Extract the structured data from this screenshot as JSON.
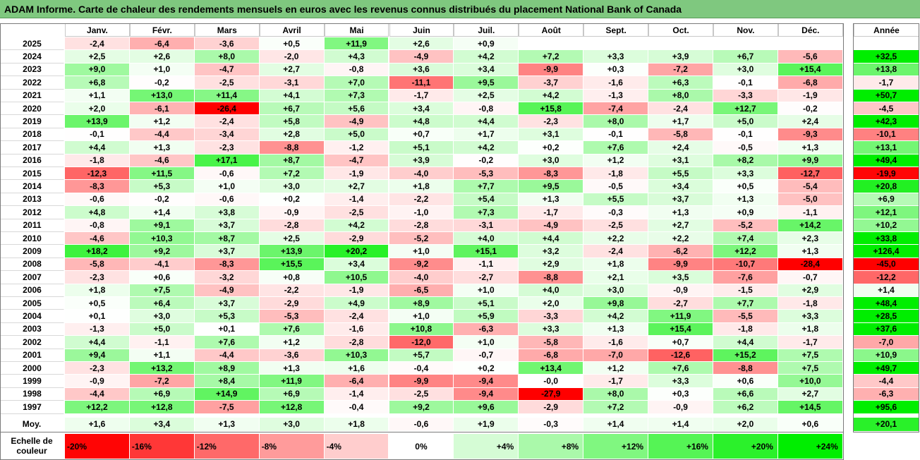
{
  "title": "ADAM Informe. Carte de chaleur des rendements mensuels en euros avec les revenus connus distribués du placement National Bank of Canada",
  "chart_data": {
    "type": "heatmap",
    "title": "ADAM Informe. Carte de chaleur des rendements mensuels en euros avec les revenus connus distribués du placement National Bank of Canada",
    "columns": [
      "Janv.",
      "Févr.",
      "Mars",
      "Avril",
      "Mai",
      "Juin",
      "Juil.",
      "Août",
      "Sept.",
      "Oct.",
      "Nov.",
      "Déc."
    ],
    "year_header": "Année",
    "rows": [
      {
        "year": "2025",
        "values": [
          "-2,4",
          "-6,4",
          "-3,6",
          "+0,5",
          "+11,9",
          "+2,6",
          "+0,9",
          "",
          "",
          "",
          "",
          ""
        ],
        "annual": ""
      },
      {
        "year": "2024",
        "values": [
          "+2,5",
          "+2,6",
          "+8,0",
          "-2,0",
          "+4,3",
          "-4,9",
          "+4,2",
          "+7,2",
          "+3,3",
          "+3,9",
          "+6,7",
          "-5,6"
        ],
        "annual": "+32,5"
      },
      {
        "year": "2023",
        "values": [
          "+9,0",
          "+1,0",
          "-4,7",
          "+2,7",
          "-0,8",
          "+3,6",
          "+3,4",
          "-9,9",
          "+0,3",
          "-7,2",
          "+3,0",
          "+15,4"
        ],
        "annual": "+13,8"
      },
      {
        "year": "2022",
        "values": [
          "+6,8",
          "-0,2",
          "-2,5",
          "-3,1",
          "+7,0",
          "-11,1",
          "+9,5",
          "-3,7",
          "-1,6",
          "+6,3",
          "-0,1",
          "-6,8"
        ],
        "annual": "-1,7"
      },
      {
        "year": "2021",
        "values": [
          "+1,1",
          "+13,0",
          "+11,4",
          "+4,1",
          "+7,3",
          "-1,7",
          "+2,5",
          "+4,2",
          "-1,3",
          "+8,0",
          "-3,3",
          "-1,9"
        ],
        "annual": "+50,7"
      },
      {
        "year": "2020",
        "values": [
          "+2,0",
          "-6,1",
          "-26,4",
          "+6,7",
          "+5,6",
          "+3,4",
          "-0,8",
          "+15,8",
          "-7,4",
          "-2,4",
          "+12,7",
          "-0,2"
        ],
        "annual": "-4,5"
      },
      {
        "year": "2019",
        "values": [
          "+13,9",
          "+1,2",
          "-2,4",
          "+5,8",
          "-4,9",
          "+4,8",
          "+4,4",
          "-2,3",
          "+8,0",
          "+1,7",
          "+5,0",
          "+2,4"
        ],
        "annual": "+42,3"
      },
      {
        "year": "2018",
        "values": [
          "-0,1",
          "-4,4",
          "-3,4",
          "+2,8",
          "+5,0",
          "+0,7",
          "+1,7",
          "+3,1",
          "-0,1",
          "-5,8",
          "-0,1",
          "-9,3"
        ],
        "annual": "-10,1"
      },
      {
        "year": "2017",
        "values": [
          "+4,4",
          "+1,3",
          "-2,3",
          "-8,8",
          "-1,2",
          "+5,1",
          "+4,2",
          "+0,2",
          "+7,6",
          "+2,4",
          "-0,5",
          "+1,3"
        ],
        "annual": "+13,1"
      },
      {
        "year": "2016",
        "values": [
          "-1,8",
          "-4,6",
          "+17,1",
          "+8,7",
          "-4,7",
          "+3,9",
          "-0,2",
          "+3,0",
          "+1,2",
          "+3,1",
          "+8,2",
          "+9,9"
        ],
        "annual": "+49,4"
      },
      {
        "year": "2015",
        "values": [
          "-12,3",
          "+11,5",
          "-0,6",
          "+7,2",
          "-1,9",
          "-4,0",
          "-5,3",
          "-8,3",
          "-1,8",
          "+5,5",
          "+3,3",
          "-12,7"
        ],
        "annual": "-19,9"
      },
      {
        "year": "2014",
        "values": [
          "-8,3",
          "+5,3",
          "+1,0",
          "+3,0",
          "+2,7",
          "+1,8",
          "+7,7",
          "+9,5",
          "-0,5",
          "+3,4",
          "+0,5",
          "-5,4"
        ],
        "annual": "+20,8"
      },
      {
        "year": "2013",
        "values": [
          "-0,6",
          "-0,2",
          "-0,6",
          "+0,2",
          "-1,4",
          "-2,2",
          "+5,4",
          "+1,3",
          "+5,5",
          "+3,7",
          "+1,3",
          "-5,0"
        ],
        "annual": "+6,9"
      },
      {
        "year": "2012",
        "values": [
          "+4,8",
          "+1,4",
          "+3,8",
          "-0,9",
          "-2,5",
          "-1,0",
          "+7,3",
          "-1,7",
          "-0,3",
          "+1,3",
          "+0,9",
          "-1,1"
        ],
        "annual": "+12,1"
      },
      {
        "year": "2011",
        "values": [
          "-0,8",
          "+9,1",
          "+3,7",
          "-2,8",
          "+4,2",
          "-2,8",
          "-3,1",
          "-4,9",
          "-2,5",
          "+2,7",
          "-5,2",
          "+14,2"
        ],
        "annual": "+10,2"
      },
      {
        "year": "2010",
        "values": [
          "-4,6",
          "+10,3",
          "+8,7",
          "+2,5",
          "-2,9",
          "-5,2",
          "+4,0",
          "+4,4",
          "+2,2",
          "+2,2",
          "+7,4",
          "+2,3"
        ],
        "annual": "+33,8"
      },
      {
        "year": "2009",
        "values": [
          "+18,2",
          "+9,2",
          "+3,7",
          "+13,9",
          "+20,2",
          "+1,0",
          "+15,1",
          "+3,2",
          "-2,4",
          "-6,2",
          "+12,2",
          "+1,3"
        ],
        "annual": "+126,4"
      },
      {
        "year": "2008",
        "values": [
          "-5,8",
          "-4,1",
          "-8,3",
          "+15,5",
          "+3,4",
          "-9,2",
          "-1,1",
          "+2,9",
          "+1,8",
          "-9,9",
          "-10,7",
          "-28,4"
        ],
        "annual": "-45,0"
      },
      {
        "year": "2007",
        "values": [
          "-2,3",
          "+0,6",
          "-3,2",
          "+0,8",
          "+10,5",
          "-4,0",
          "-2,7",
          "-8,8",
          "+2,1",
          "+3,5",
          "-7,6",
          "-0,7"
        ],
        "annual": "-12,2"
      },
      {
        "year": "2006",
        "values": [
          "+1,8",
          "+7,5",
          "-4,9",
          "-2,2",
          "-1,9",
          "-6,5",
          "+1,0",
          "+4,0",
          "+3,0",
          "-0,9",
          "-1,5",
          "+2,9"
        ],
        "annual": "+1,4"
      },
      {
        "year": "2005",
        "values": [
          "+0,5",
          "+6,4",
          "+3,7",
          "-2,9",
          "+4,9",
          "+8,9",
          "+5,1",
          "+2,0",
          "+9,8",
          "-2,7",
          "+7,7",
          "-1,8"
        ],
        "annual": "+48,4"
      },
      {
        "year": "2004",
        "values": [
          "+0,1",
          "+3,0",
          "+5,3",
          "-5,3",
          "-2,4",
          "+1,0",
          "+5,9",
          "-3,3",
          "+4,2",
          "+11,9",
          "-5,5",
          "+3,3"
        ],
        "annual": "+28,5"
      },
      {
        "year": "2003",
        "values": [
          "-1,3",
          "+5,0",
          "+0,1",
          "+7,6",
          "-1,6",
          "+10,8",
          "-6,3",
          "+3,3",
          "+1,3",
          "+15,4",
          "-1,8",
          "+1,8"
        ],
        "annual": "+37,6"
      },
      {
        "year": "2002",
        "values": [
          "+4,4",
          "-1,1",
          "+7,6",
          "+1,2",
          "-2,8",
          "-12,0",
          "+1,0",
          "-5,8",
          "-1,6",
          "+0,7",
          "+4,4",
          "-1,7"
        ],
        "annual": "-7,0"
      },
      {
        "year": "2001",
        "values": [
          "+9,4",
          "+1,1",
          "-4,4",
          "-3,6",
          "+10,3",
          "+5,7",
          "-0,7",
          "-6,8",
          "-7,0",
          "-12,6",
          "+15,2",
          "+7,5"
        ],
        "annual": "+10,9"
      },
      {
        "year": "2000",
        "values": [
          "-2,3",
          "+13,2",
          "+8,9",
          "+1,3",
          "+1,6",
          "-0,4",
          "+0,2",
          "+13,4",
          "+1,2",
          "+7,6",
          "-8,8",
          "+7,5"
        ],
        "annual": "+49,7"
      },
      {
        "year": "1999",
        "values": [
          "-0,9",
          "-7,2",
          "+8,4",
          "+11,9",
          "-6,4",
          "-9,9",
          "-9,4",
          "-0,0",
          "-1,7",
          "+3,3",
          "+0,6",
          "+10,0"
        ],
        "annual": "-4,4"
      },
      {
        "year": "1998",
        "values": [
          "-4,4",
          "+6,9",
          "+14,9",
          "+6,9",
          "-1,4",
          "-2,5",
          "-9,4",
          "-27,9",
          "+8,0",
          "+0,3",
          "+6,6",
          "+2,7"
        ],
        "annual": "-6,3"
      },
      {
        "year": "1997",
        "values": [
          "+12,2",
          "+12,8",
          "-7,5",
          "+12,8",
          "-0,4",
          "+9,2",
          "+9,6",
          "-2,9",
          "+7,2",
          "-0,9",
          "+6,2",
          "+14,5"
        ],
        "annual": "+95,6"
      }
    ],
    "average": {
      "label": "Moy.",
      "values": [
        "+1,6",
        "+3,4",
        "+1,3",
        "+3,0",
        "+1,8",
        "-0,6",
        "+1,9",
        "-0,3",
        "+1,4",
        "+1,4",
        "+2,0",
        "+0,6"
      ],
      "annual": "+20,1"
    },
    "color_scale": {
      "label": "Echelle de couleur",
      "stops": [
        "-20%",
        "-16%",
        "-12%",
        "-8%",
        "-4%",
        "0%",
        "+4%",
        "+8%",
        "+12%",
        "+16%",
        "+20%",
        "+24%"
      ],
      "negative_color": "#ff0000",
      "positive_color": "#00ee00",
      "neutral_color": "#ffffff"
    }
  }
}
